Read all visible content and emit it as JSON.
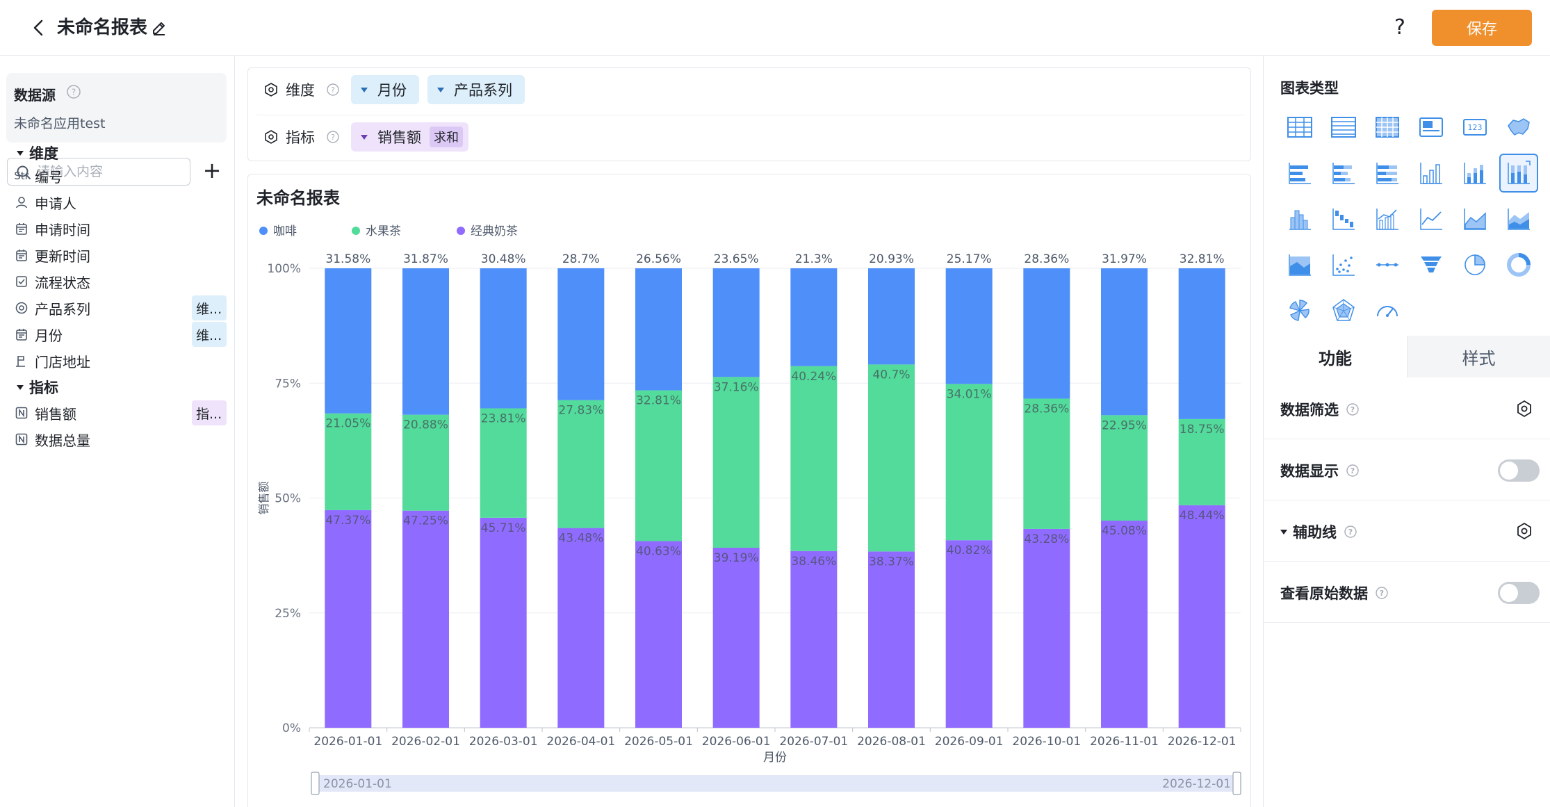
{
  "header": {
    "title": "未命名报表",
    "save_label": "保存",
    "help_label": "?"
  },
  "left": {
    "datasource_label": "数据源",
    "datasource_name": "未命名应用test",
    "search_placeholder": "请输入内容",
    "dimensions_label": "维度",
    "metrics_label": "指标",
    "dimension_fields": [
      {
        "icon": "Str",
        "label": "编号",
        "tag": ""
      },
      {
        "icon": "person",
        "label": "申请人",
        "tag": ""
      },
      {
        "icon": "calendar",
        "label": "申请时间",
        "tag": ""
      },
      {
        "icon": "calendar",
        "label": "更新时间",
        "tag": ""
      },
      {
        "icon": "checkbox",
        "label": "流程状态",
        "tag": ""
      },
      {
        "icon": "target",
        "label": "产品系列",
        "tag": "维..."
      },
      {
        "icon": "calendar",
        "label": "月份",
        "tag": "维..."
      },
      {
        "icon": "location",
        "label": "门店地址",
        "tag": ""
      }
    ],
    "metric_fields": [
      {
        "icon": "N",
        "label": "销售额",
        "tag": "指..."
      },
      {
        "icon": "N",
        "label": "数据总量",
        "tag": ""
      }
    ]
  },
  "config": {
    "dimension_label": "维度",
    "metric_label": "指标",
    "dimension_pills": [
      "月份",
      "产品系列"
    ],
    "metric_pills": [
      {
        "label": "销售额",
        "agg": "求和"
      }
    ]
  },
  "chart_card": {
    "title": "未命名报表",
    "zoom_start": "2026-01-01",
    "zoom_end": "2026-12-01"
  },
  "chart_data": {
    "type": "bar",
    "stacked": "percent",
    "xlabel": "月份",
    "ylabel": "销售额",
    "ylim": [
      0,
      100
    ],
    "ytick_labels": [
      "0%",
      "25%",
      "50%",
      "75%",
      "100%"
    ],
    "legend_position": "top-left",
    "categories": [
      "2026-01-01",
      "2026-02-01",
      "2026-03-01",
      "2026-04-01",
      "2026-05-01",
      "2026-06-01",
      "2026-07-01",
      "2026-08-01",
      "2026-09-01",
      "2026-10-01",
      "2026-11-01",
      "2026-12-01"
    ],
    "series": [
      {
        "name": "经典奶茶",
        "color": "#8f6cff",
        "values": [
          47.37,
          47.25,
          45.71,
          43.48,
          40.63,
          39.19,
          38.46,
          38.37,
          40.82,
          43.28,
          45.08,
          48.44
        ]
      },
      {
        "name": "水果茶",
        "color": "#52db9a",
        "values": [
          21.05,
          20.88,
          23.81,
          27.83,
          32.81,
          37.16,
          40.24,
          40.7,
          34.01,
          28.36,
          22.95,
          18.75
        ]
      },
      {
        "name": "咖啡",
        "color": "#4e8ff9",
        "values": [
          31.58,
          31.87,
          30.48,
          28.7,
          26.56,
          23.65,
          21.3,
          20.93,
          25.17,
          28.36,
          31.97,
          32.81
        ]
      }
    ],
    "legend_order": [
      "咖啡",
      "水果茶",
      "经典奶茶"
    ]
  },
  "right": {
    "chart_type_label": "图表类型",
    "chart_types": [
      "table-icon",
      "detail-table-icon",
      "pivot-table-icon",
      "card-icon",
      "number-card-icon",
      "map-icon",
      "bar-h-icon",
      "bar-h-stacked-icon",
      "bar-h-percent-icon",
      "column-icon",
      "column-stacked-icon",
      "column-percent-icon",
      "histogram-icon",
      "waterfall-icon",
      "combo-icon",
      "line-icon",
      "area-icon",
      "stacked-area-icon",
      "percent-area-icon",
      "scatter-icon",
      "dot-line-icon",
      "funnel-icon",
      "pie-icon",
      "ring-icon",
      "rose-icon",
      "radar-icon",
      "gauge-icon"
    ],
    "active_chart_type": "column-percent-icon",
    "tab_function": "功能",
    "tab_style": "样式",
    "options": [
      {
        "label": "数据筛选",
        "control": "gear"
      },
      {
        "label": "数据显示",
        "control": "toggle"
      },
      {
        "label": "辅助线",
        "control": "gear"
      },
      {
        "label": "查看原始数据",
        "control": "toggle"
      }
    ]
  }
}
